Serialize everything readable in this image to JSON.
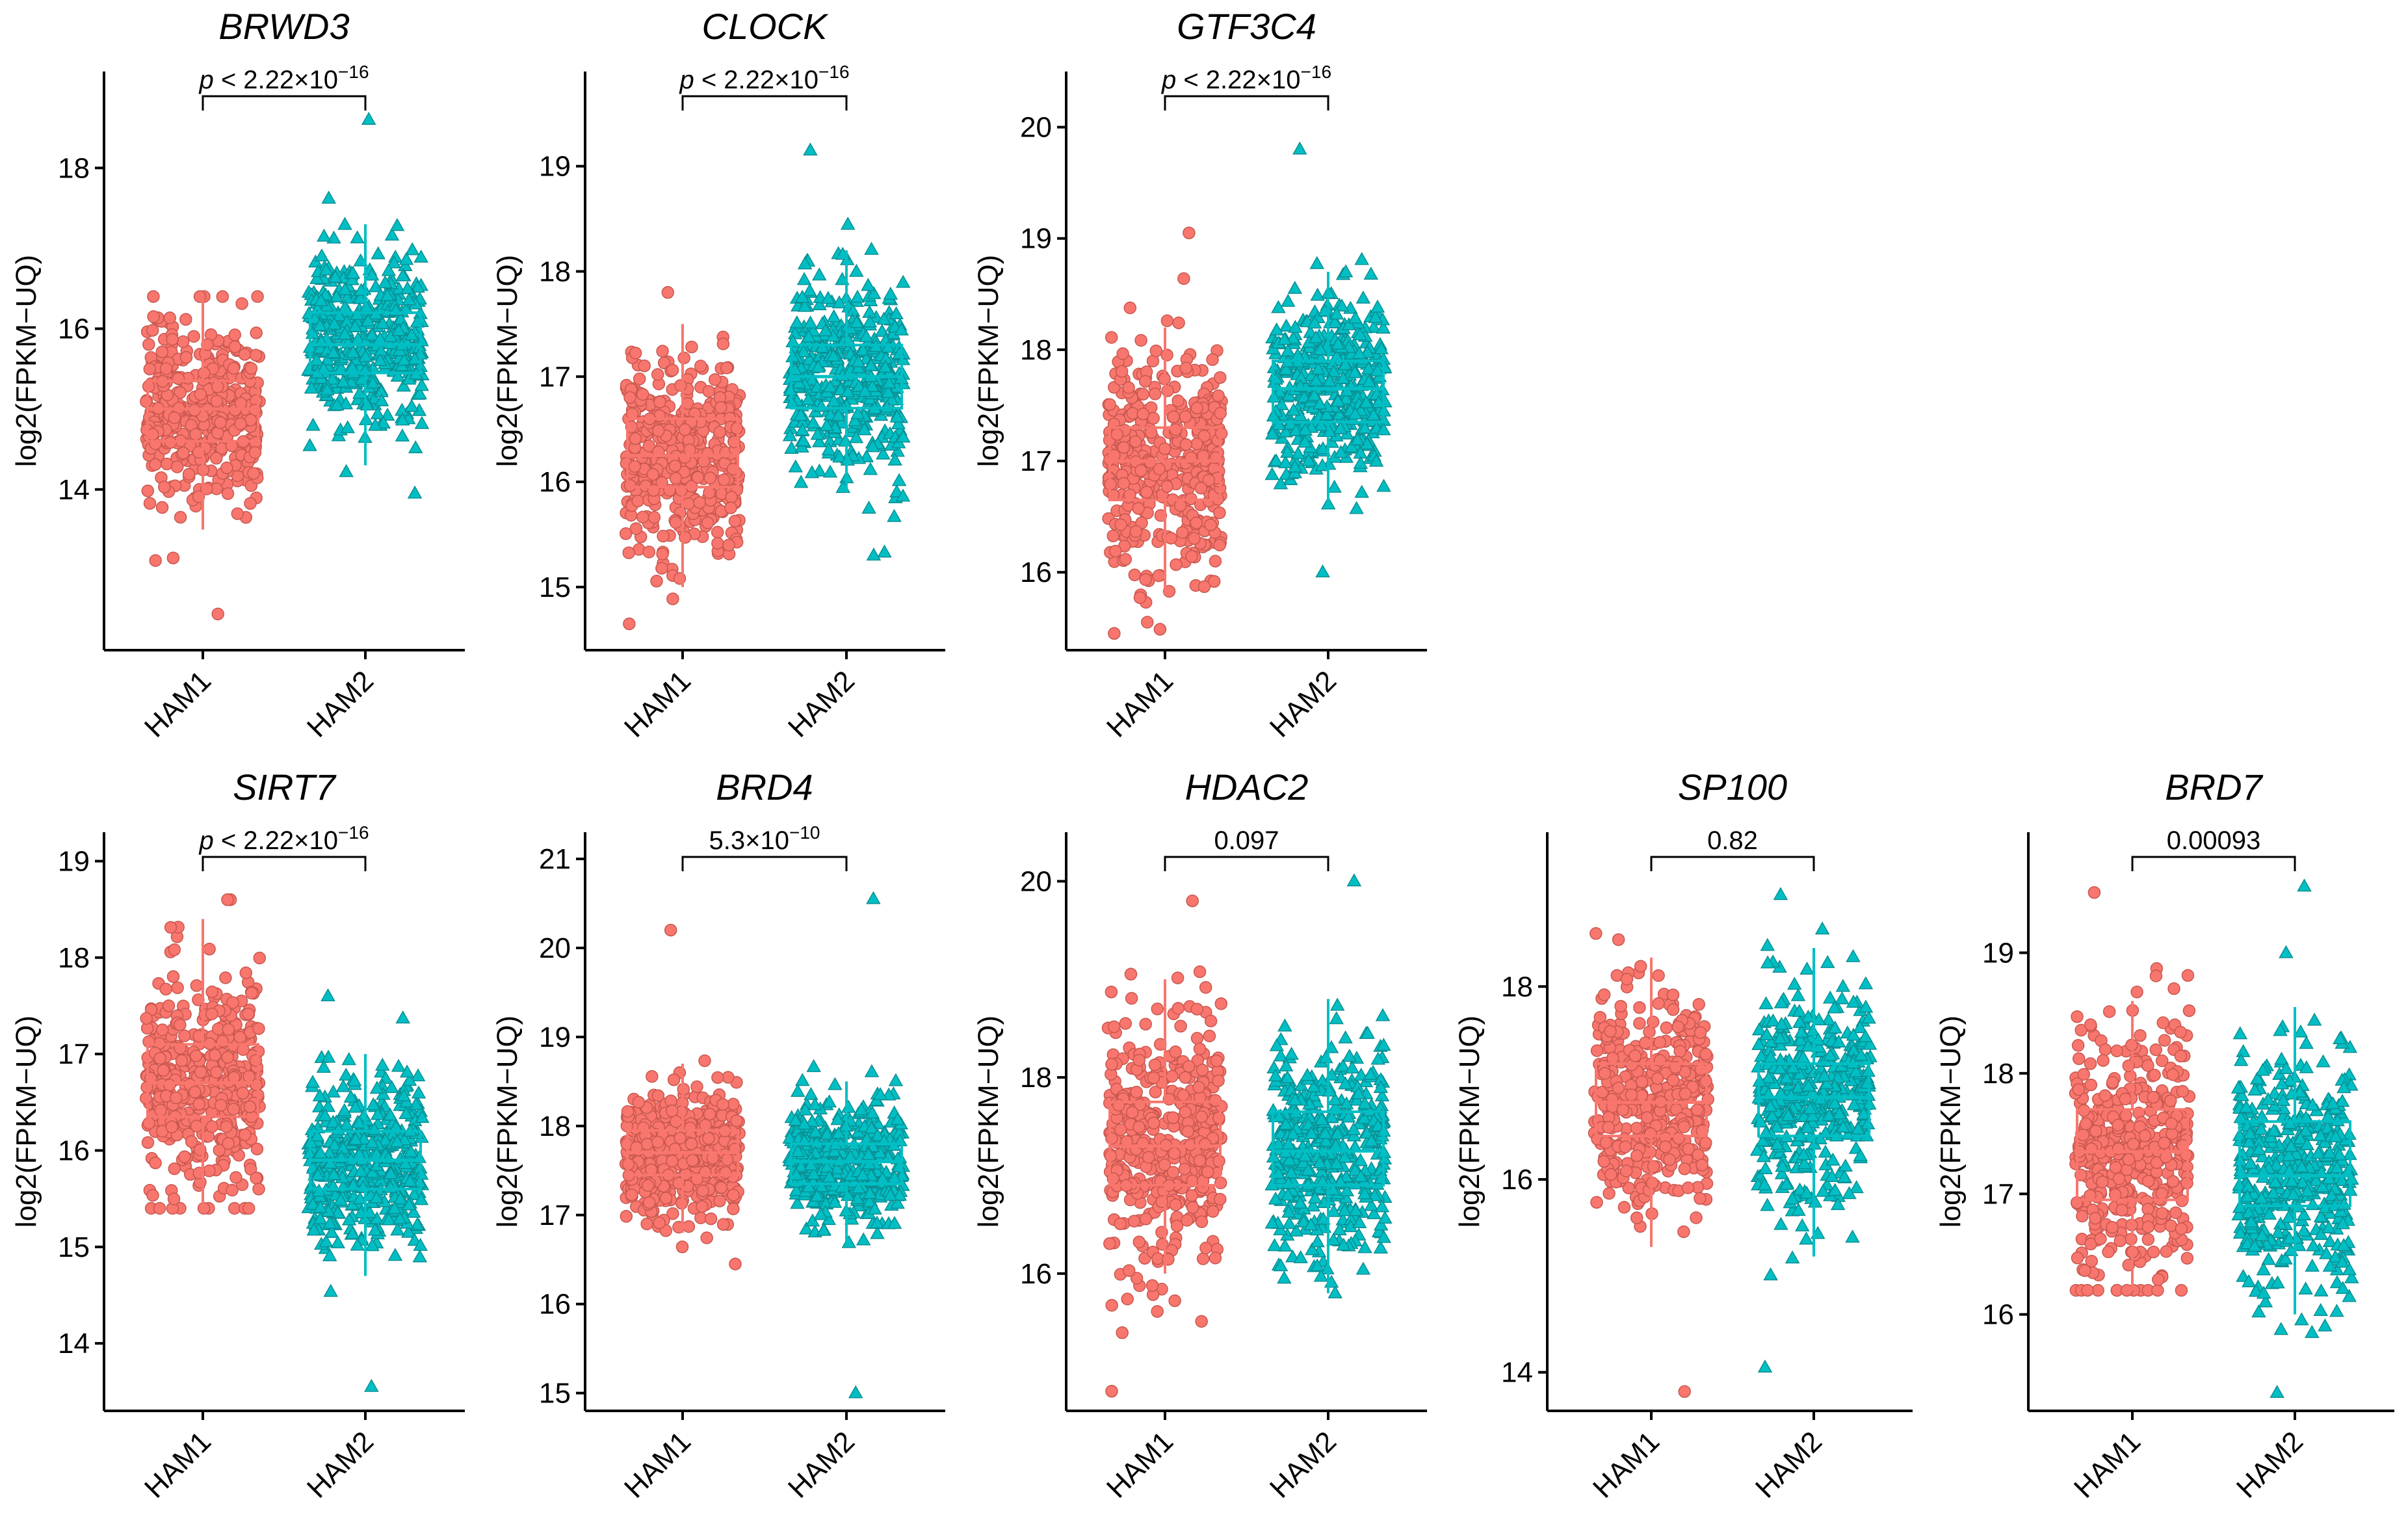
{
  "colors": {
    "ham1": "#F8766D",
    "ham2": "#00BFC4",
    "ham1_edge": "#c8574f",
    "ham2_edge": "#0a8f93"
  },
  "chart_data": [
    {
      "type": "box",
      "title": "BRWD3",
      "ylabel": "log2(FPKM−UQ)",
      "categories": [
        "HAM1",
        "HAM2"
      ],
      "ylim": [
        12.0,
        19.2
      ],
      "yticks": [
        14,
        16,
        18
      ],
      "ytick_labels": [
        "14",
        "16",
        "18"
      ],
      "pvalue": {
        "prefix": "p",
        "text": " < 2.22×10",
        "exp": "−16"
      },
      "series": [
        {
          "name": "HAM1",
          "q1": 14.6,
          "median": 15.0,
          "q3": 15.35,
          "whisker_low": 13.5,
          "whisker_high": 16.4,
          "min": 12.45,
          "max": 16.4
        },
        {
          "name": "HAM2",
          "q1": 15.45,
          "median": 15.8,
          "q3": 16.2,
          "whisker_low": 14.3,
          "whisker_high": 17.3,
          "min": 13.95,
          "max": 18.6
        }
      ]
    },
    {
      "type": "box",
      "title": "CLOCK",
      "ylabel": "log2(FPKM−UQ)",
      "categories": [
        "HAM1",
        "HAM2"
      ],
      "ylim": [
        14.4,
        19.9
      ],
      "yticks": [
        15,
        16,
        17,
        18,
        19
      ],
      "ytick_labels": [
        "15",
        "16",
        "17",
        "18",
        "19"
      ],
      "pvalue": {
        "prefix": "p",
        "text": " < 2.22×10",
        "exp": "−16"
      },
      "series": [
        {
          "name": "HAM1",
          "q1": 15.95,
          "median": 16.25,
          "q3": 16.6,
          "whisker_low": 15.0,
          "whisker_high": 17.5,
          "min": 14.65,
          "max": 17.8
        },
        {
          "name": "HAM2",
          "q1": 16.7,
          "median": 17.0,
          "q3": 17.3,
          "whisker_low": 15.9,
          "whisker_high": 18.2,
          "min": 15.3,
          "max": 19.15
        }
      ]
    },
    {
      "type": "box",
      "title": "GTF3C4",
      "ylabel": "log2(FPKM−UQ)",
      "categories": [
        "HAM1",
        "HAM2"
      ],
      "ylim": [
        15.3,
        20.5
      ],
      "yticks": [
        16,
        17,
        18,
        19,
        20
      ],
      "ytick_labels": [
        "16",
        "17",
        "18",
        "19",
        "20"
      ],
      "pvalue": {
        "prefix": "p",
        "text": " < 2.22×10",
        "exp": "−16"
      },
      "series": [
        {
          "name": "HAM1",
          "q1": 16.65,
          "median": 17.0,
          "q3": 17.3,
          "whisker_low": 15.8,
          "whisker_high": 18.2,
          "min": 15.45,
          "max": 19.05
        },
        {
          "name": "HAM2",
          "q1": 17.35,
          "median": 17.65,
          "q3": 17.9,
          "whisker_low": 16.6,
          "whisker_high": 18.7,
          "min": 16.0,
          "max": 19.8
        }
      ]
    },
    {
      "type": "box",
      "title": "SIRT7",
      "ylabel": "log2(FPKM−UQ)",
      "categories": [
        "HAM1",
        "HAM2"
      ],
      "ylim": [
        13.3,
        19.3
      ],
      "yticks": [
        14,
        15,
        16,
        17,
        18,
        19
      ],
      "ytick_labels": [
        "14",
        "15",
        "16",
        "17",
        "18",
        "19"
      ],
      "pvalue": {
        "prefix": "p",
        "text": " < 2.22×10",
        "exp": "−16"
      },
      "series": [
        {
          "name": "HAM1",
          "q1": 16.35,
          "median": 16.7,
          "q3": 17.1,
          "whisker_low": 15.4,
          "whisker_high": 18.4,
          "min": 15.4,
          "max": 18.6
        },
        {
          "name": "HAM2",
          "q1": 15.6,
          "median": 15.9,
          "q3": 16.2,
          "whisker_low": 14.7,
          "whisker_high": 17.0,
          "min": 13.55,
          "max": 17.6
        }
      ]
    },
    {
      "type": "box",
      "title": "BRD4",
      "ylabel": "log2(FPKM−UQ)",
      "categories": [
        "HAM1",
        "HAM2"
      ],
      "ylim": [
        14.8,
        21.3
      ],
      "yticks": [
        15,
        16,
        17,
        18,
        19,
        20,
        21
      ],
      "ytick_labels": [
        "15",
        "16",
        "17",
        "18",
        "19",
        "20",
        "21"
      ],
      "pvalue": {
        "prefix": "",
        "text": "5.3×10",
        "exp": "−10"
      },
      "series": [
        {
          "name": "HAM1",
          "q1": 17.45,
          "median": 17.7,
          "q3": 17.95,
          "whisker_low": 16.8,
          "whisker_high": 18.7,
          "min": 16.45,
          "max": 20.2
        },
        {
          "name": "HAM2",
          "q1": 17.35,
          "median": 17.6,
          "q3": 17.8,
          "whisker_low": 16.7,
          "whisker_high": 18.5,
          "min": 15.0,
          "max": 20.55
        }
      ]
    },
    {
      "type": "box",
      "title": "HDAC2",
      "ylabel": "log2(FPKM−UQ)",
      "categories": [
        "HAM1",
        "HAM2"
      ],
      "ylim": [
        14.6,
        20.5
      ],
      "yticks": [
        16,
        18,
        20
      ],
      "ytick_labels": [
        "16",
        "18",
        "20"
      ],
      "pvalue": {
        "prefix": "",
        "text": "0.097",
        "exp": ""
      },
      "series": [
        {
          "name": "HAM1",
          "q1": 16.9,
          "median": 17.3,
          "q3": 17.75,
          "whisker_low": 16.0,
          "whisker_high": 19.0,
          "min": 14.8,
          "max": 19.8
        },
        {
          "name": "HAM2",
          "q1": 16.9,
          "median": 17.25,
          "q3": 17.65,
          "whisker_low": 15.8,
          "whisker_high": 18.8,
          "min": 15.8,
          "max": 20.0
        }
      ]
    },
    {
      "type": "box",
      "title": "SP100",
      "ylabel": "log2(FPKM−UQ)",
      "categories": [
        "HAM1",
        "HAM2"
      ],
      "ylim": [
        13.6,
        19.6
      ],
      "yticks": [
        14,
        16,
        18
      ],
      "ytick_labels": [
        "14",
        "16",
        "18"
      ],
      "pvalue": {
        "prefix": "",
        "text": "0.82",
        "exp": ""
      },
      "series": [
        {
          "name": "HAM1",
          "q1": 16.45,
          "median": 16.8,
          "q3": 17.2,
          "whisker_low": 15.3,
          "whisker_high": 18.3,
          "min": 13.8,
          "max": 18.55
        },
        {
          "name": "HAM2",
          "q1": 16.45,
          "median": 16.85,
          "q3": 17.2,
          "whisker_low": 15.2,
          "whisker_high": 18.4,
          "min": 14.05,
          "max": 18.95
        }
      ]
    },
    {
      "type": "box",
      "title": "BRD7",
      "ylabel": "log2(FPKM−UQ)",
      "categories": [
        "HAM1",
        "HAM2"
      ],
      "ylim": [
        15.2,
        20.0
      ],
      "yticks": [
        16,
        17,
        18,
        19
      ],
      "ytick_labels": [
        "16",
        "17",
        "18",
        "19"
      ],
      "pvalue": {
        "prefix": "",
        "text": "0.00093",
        "exp": ""
      },
      "series": [
        {
          "name": "HAM1",
          "q1": 16.95,
          "median": 17.35,
          "q3": 17.7,
          "whisker_low": 16.2,
          "whisker_high": 18.6,
          "min": 16.2,
          "max": 19.5
        },
        {
          "name": "HAM2",
          "q1": 16.9,
          "median": 17.15,
          "q3": 17.6,
          "whisker_low": 16.0,
          "whisker_high": 18.55,
          "min": 15.35,
          "max": 19.55
        }
      ]
    }
  ]
}
